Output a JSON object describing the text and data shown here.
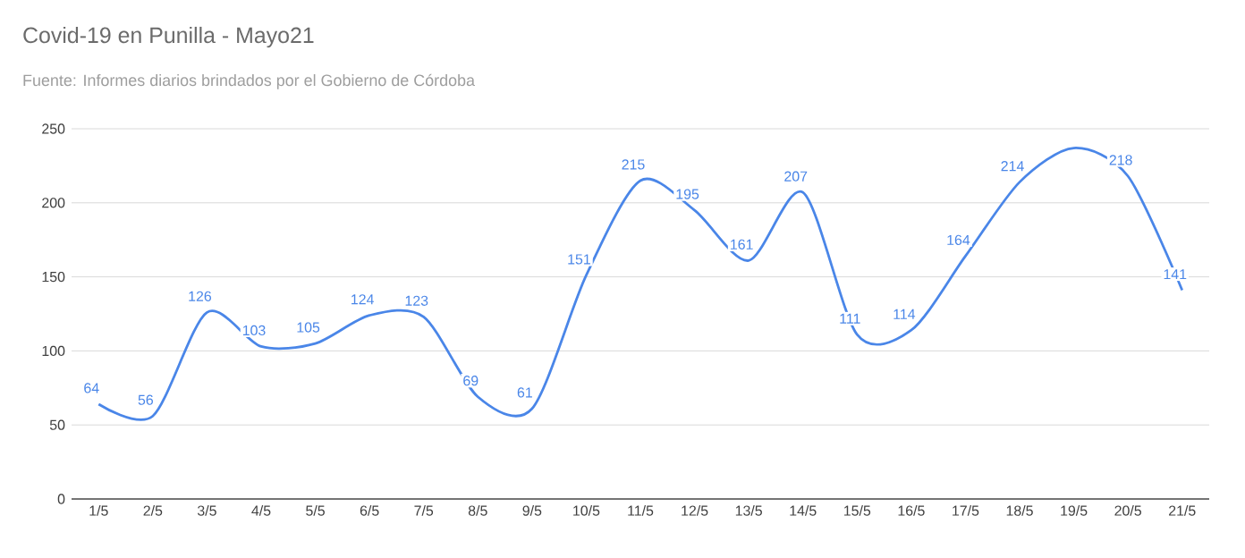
{
  "chart_data": {
    "type": "line",
    "title": "Covid-19 en Punilla - Mayo21",
    "subtitle": "Fuente:  Informes diarios brindados por el Gobierno de Córdoba",
    "categories": [
      "1/5",
      "2/5",
      "3/5",
      "4/5",
      "5/5",
      "6/5",
      "7/5",
      "8/5",
      "9/5",
      "10/5",
      "11/5",
      "12/5",
      "13/5",
      "14/5",
      "15/5",
      "16/5",
      "17/5",
      "18/5",
      "19/5",
      "20/5",
      "21/5"
    ],
    "series": [
      {
        "color": "#4a86e8",
        "values": [
          64,
          56,
          126,
          103,
          105,
          124,
          123,
          69,
          61,
          151,
          215,
          195,
          161,
          207,
          111,
          114,
          164,
          214,
          237,
          218,
          141
        ],
        "value_labels": [
          "64",
          "56",
          "126",
          "103",
          "105",
          "124",
          "123",
          "69",
          "61",
          "151",
          "215",
          "195",
          "161",
          "207",
          "111",
          "114",
          "164",
          "214",
          null,
          "218",
          "141"
        ]
      }
    ],
    "ylim": [
      0,
      250
    ],
    "yticks": [
      0,
      50,
      100,
      150,
      200,
      250
    ],
    "grid": "y",
    "marker": "none",
    "line_style": "solid"
  }
}
